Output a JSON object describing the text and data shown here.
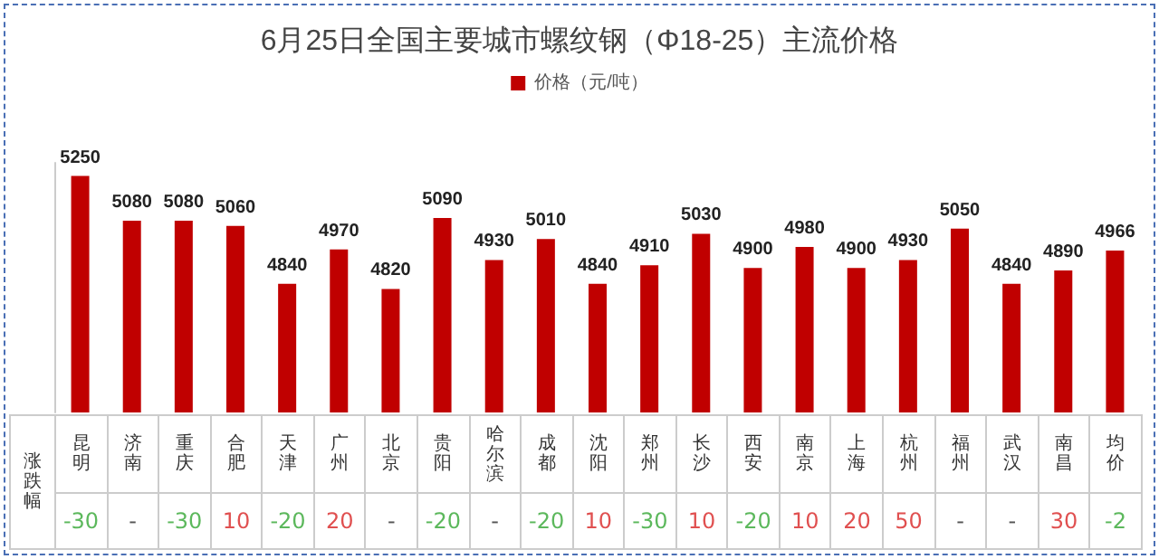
{
  "chart_data": {
    "type": "bar",
    "title": "6月25日全国主要城市螺纹钢（Φ18-25）主流价格",
    "categories": [
      "昆明",
      "济南",
      "重庆",
      "合肥",
      "天津",
      "广州",
      "北京",
      "贵阳",
      "哈尔滨",
      "成都",
      "沈阳",
      "郑州",
      "长沙",
      "西安",
      "南京",
      "上海",
      "杭州",
      "福州",
      "武汉",
      "南昌",
      "均价"
    ],
    "series": [
      {
        "name": "价格（元/吨）",
        "color": "#c00000",
        "values": [
          5250,
          5080,
          5080,
          5060,
          4840,
          4970,
          4820,
          5090,
          4930,
          5010,
          4840,
          4910,
          5030,
          4900,
          4980,
          4900,
          4930,
          5050,
          4840,
          4890,
          4966
        ]
      }
    ],
    "ylim": [
      4350,
      5300
    ],
    "data_labels": true,
    "legend": "top",
    "grid": false,
    "tick_labels": false,
    "annotations": [
      "涨跌幅",
      "-30",
      "-",
      "-30",
      "10",
      "-20",
      "20",
      "-",
      "-20",
      "-",
      "-20",
      "10",
      "-30",
      "10",
      "-20",
      "10",
      "20",
      "50",
      "-",
      "-",
      "30",
      "-2"
    ]
  }
}
